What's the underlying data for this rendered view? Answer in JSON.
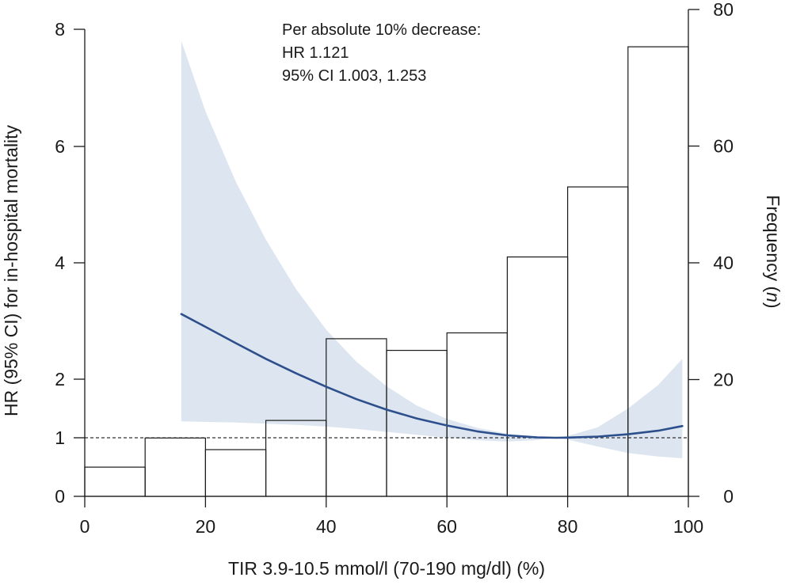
{
  "chart_data": {
    "type": "bar",
    "xlabel": "TIR 3.9-10.5 mmol/l (70-190 mg/dl) (%)",
    "ylabel_left": "HR (95% CI) for in-hospital mortality",
    "ylabel_right_prefix": "Frequency (",
    "ylabel_right_italic": "n",
    "ylabel_right_suffix": ")",
    "annotation": [
      "Per absolute 10% decrease:",
      "HR  1.121",
      "95% CI 1.003, 1.253"
    ],
    "xlim": [
      0,
      100
    ],
    "x_ticks": [
      0,
      20,
      40,
      60,
      80,
      100
    ],
    "x_tick_labels": [
      "0",
      "20",
      "40",
      "60",
      "80",
      "100"
    ],
    "hr_tick_values": [
      0,
      1,
      2,
      4,
      6,
      8
    ],
    "hr_tick_labels": [
      "0",
      "1",
      "2",
      "4",
      "6",
      "8"
    ],
    "freq_ylim": [
      0,
      80
    ],
    "freq_ticks": [
      0,
      20,
      40,
      60,
      80
    ],
    "freq_tick_labels": [
      "0",
      "20",
      "40",
      "60",
      "80"
    ],
    "reference_hr": 1,
    "histogram": {
      "bin_edges": [
        0,
        10,
        20,
        30,
        40,
        50,
        60,
        70,
        80,
        90,
        100
      ],
      "counts": [
        5,
        10,
        8,
        13,
        27,
        25,
        28,
        41,
        53,
        77
      ]
    },
    "hr_curve": {
      "x": [
        16,
        20,
        25,
        30,
        35,
        40,
        45,
        50,
        55,
        60,
        65,
        70,
        75,
        78,
        80,
        85,
        90,
        95,
        99
      ],
      "hr": [
        3.12,
        2.9,
        2.62,
        2.35,
        2.1,
        1.87,
        1.66,
        1.48,
        1.33,
        1.21,
        1.11,
        1.04,
        1.005,
        1.0,
        1.003,
        1.02,
        1.06,
        1.12,
        1.2
      ],
      "lower": [
        1.28,
        1.27,
        1.26,
        1.24,
        1.22,
        1.19,
        1.15,
        1.1,
        1.05,
        1.0,
        0.96,
        0.935,
        0.96,
        1.0,
        0.97,
        0.85,
        0.74,
        0.68,
        0.65
      ],
      "upper": [
        7.8,
        6.6,
        5.4,
        4.4,
        3.55,
        2.85,
        2.3,
        1.88,
        1.55,
        1.32,
        1.17,
        1.07,
        1.02,
        1.0,
        1.03,
        1.18,
        1.5,
        1.9,
        2.35
      ]
    },
    "colors": {
      "curve": "#2d4f8c",
      "band": "#dde6f0",
      "bars": "#1a1a1a",
      "text": "#1a1a1a"
    }
  }
}
